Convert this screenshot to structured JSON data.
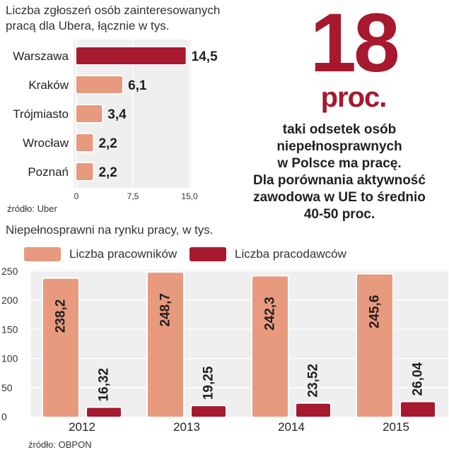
{
  "chart_data": [
    {
      "type": "bar",
      "orientation": "horizontal",
      "title": "Liczba zgłoszeń osób zainteresowanych pracą dla Ubera, łącznie w tys.",
      "categories": [
        "Warszawa",
        "Kraków",
        "Trójmiasto",
        "Wrocław",
        "Poznań"
      ],
      "values": [
        14.5,
        6.1,
        3.4,
        2.2,
        2.2
      ],
      "value_labels": [
        "14,5",
        "6,1",
        "3,4",
        "2,2",
        "2,2"
      ],
      "xlim": [
        0,
        15
      ],
      "x_ticks": [
        0,
        7.5,
        15
      ],
      "x_tick_labels": [
        "0",
        "7,5",
        "15,0"
      ],
      "highlight_color": "#a6192e",
      "bar_color": "#e79a7e",
      "source": "źródło: Uber"
    },
    {
      "type": "bar",
      "orientation": "vertical",
      "title": "Niepełnosprawni na rynku pracy, w tys.",
      "categories": [
        "2012",
        "2013",
        "2014",
        "2015"
      ],
      "series": [
        {
          "name": "Liczba pracowników",
          "values": [
            238.2,
            248.7,
            242.3,
            245.6
          ],
          "value_labels": [
            "238,2",
            "248,7",
            "242,3",
            "245,6"
          ],
          "color": "#e79a7e"
        },
        {
          "name": "Liczba pracodawców",
          "values": [
            16.32,
            19.25,
            23.52,
            26.04
          ],
          "value_labels": [
            "16,32",
            "19,25",
            "23,52",
            "26,04"
          ],
          "color": "#a6192e"
        }
      ],
      "ylim": [
        0,
        250
      ],
      "y_ticks": [
        0,
        50,
        100,
        150,
        200,
        250
      ],
      "source": "źródło: OBPON"
    }
  ],
  "callout": {
    "number": "18",
    "unit": "proc.",
    "lines": [
      "taki odsetek osób",
      "niepełnosprawnych",
      "w Polsce ma pracę.",
      "Dla porównania aktywność",
      "zawodowa w UE to średnio",
      "40-50 proc."
    ]
  },
  "titles": {
    "chart1": [
      "Liczba zgłoszeń osób zainteresowanych",
      "pracą dla Ubera, łącznie w tys."
    ],
    "chart2": "Niepełnosprawni na rynku pracy, w tys."
  },
  "colors": {
    "accent": "#a6192e",
    "light_bar": "#e79a7e",
    "panel_bg": "#efefef"
  }
}
